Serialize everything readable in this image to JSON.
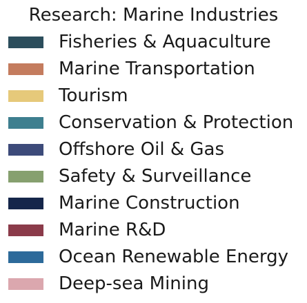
{
  "chart_data": {
    "type": "legend",
    "title": "Research: Marine Industries",
    "legend": [
      {
        "label": "Fisheries & Aquaculture",
        "color": "#2c4e5c"
      },
      {
        "label": "Marine Transportation",
        "color": "#c47c5e"
      },
      {
        "label": "Tourism",
        "color": "#e6c97a"
      },
      {
        "label": "Conservation & Protection",
        "color": "#3e7f8f"
      },
      {
        "label": "Offshore Oil & Gas",
        "color": "#3d4b7a"
      },
      {
        "label": "Safety & Surveillance",
        "color": "#86a06f"
      },
      {
        "label": "Marine Construction",
        "color": "#15264a"
      },
      {
        "label": "Marine R&D",
        "color": "#8b3b4a"
      },
      {
        "label": "Ocean Renewable Energy",
        "color": "#2d6a9a"
      },
      {
        "label": "Deep-sea Mining",
        "color": "#dba7ae"
      }
    ]
  }
}
